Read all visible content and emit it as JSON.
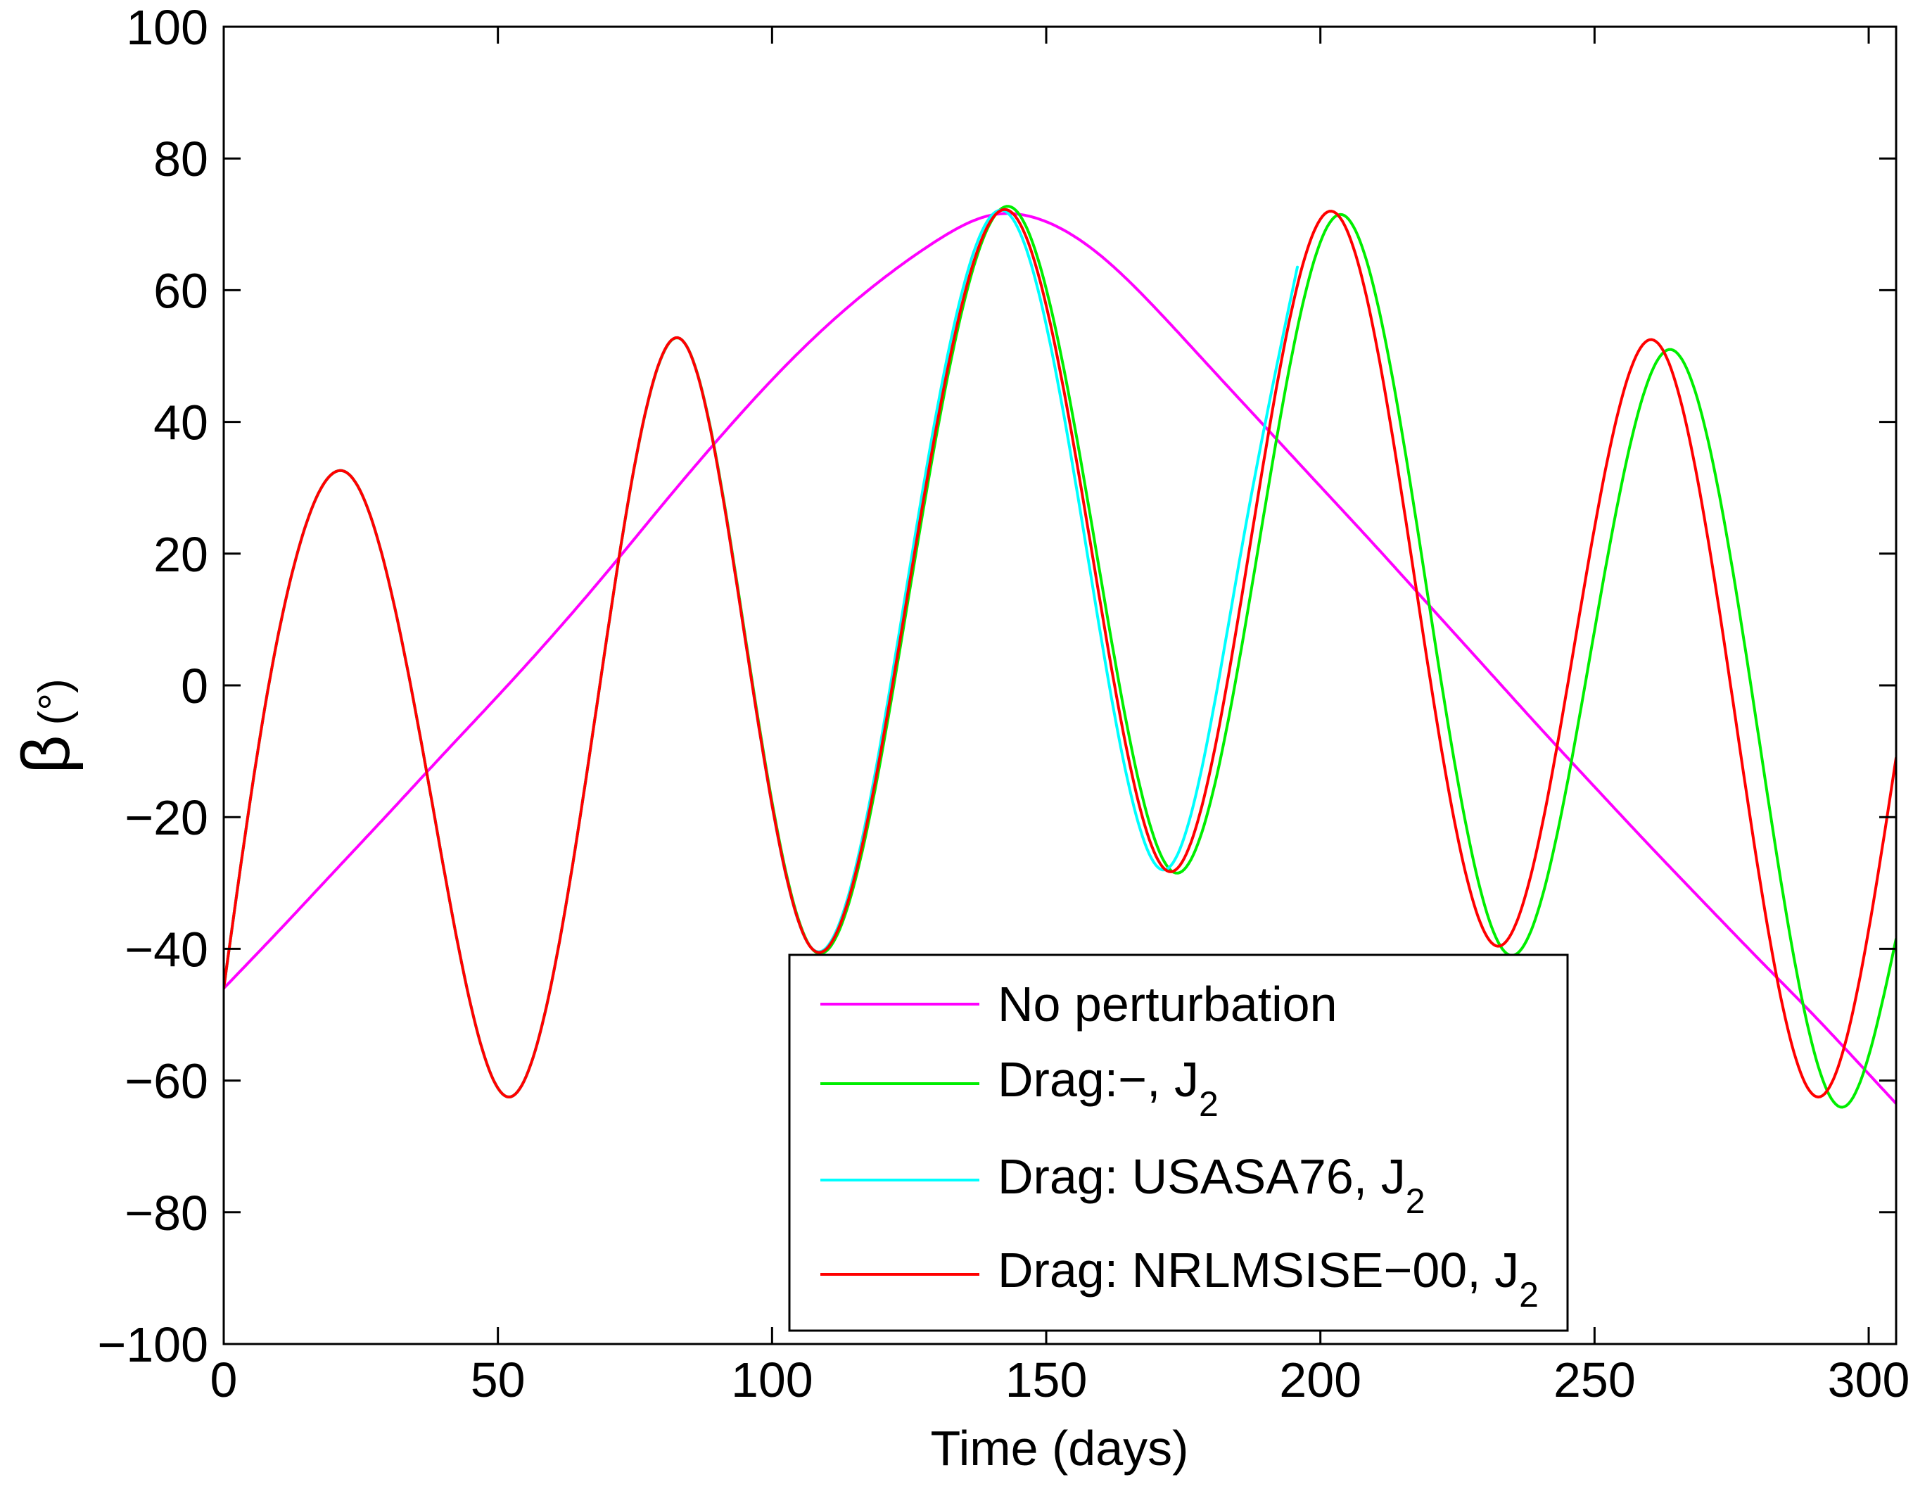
{
  "chart_data": {
    "type": "line",
    "title": "",
    "xlabel": "Time (days)",
    "ylabel": "β",
    "ylabel_unit": "(°)",
    "xlim": [
      0,
      305
    ],
    "ylim": [
      -100,
      100
    ],
    "xticks": [
      0,
      50,
      100,
      150,
      200,
      250,
      300
    ],
    "xticklabels": [
      "0",
      "50",
      "100",
      "150",
      "200",
      "250",
      "300"
    ],
    "yticks": [
      -100,
      -80,
      -60,
      -40,
      -20,
      0,
      20,
      40,
      60,
      80,
      100
    ],
    "yticklabels": [
      "−100",
      "−80",
      "−60",
      "−40",
      "−20",
      "0",
      "20",
      "40",
      "60",
      "80",
      "100"
    ],
    "grid": false,
    "box": true,
    "legend_position": "lower-center",
    "series": [
      {
        "name": "No perturbation",
        "name_sub": "",
        "color": "#ff00ff",
        "x": [
          0,
          10,
          20,
          30,
          40,
          50,
          60,
          70,
          80,
          90,
          100,
          110,
          120,
          130,
          140,
          150,
          160,
          170,
          180,
          190,
          200,
          210,
          220,
          230,
          240,
          250,
          260,
          270,
          280,
          290,
          300,
          305
        ],
        "y": [
          -46,
          -37.3,
          -28.4,
          -19.5,
          -10.5,
          -1.6,
          7.6,
          17.3,
          27.4,
          37.2,
          46.4,
          54.6,
          61.6,
          67.5,
          71.4,
          70.4,
          65.2,
          57.2,
          48.2,
          39.2,
          30.2,
          21.2,
          12.0,
          2.8,
          -6.4,
          -15.4,
          -24.3,
          -33.0,
          -41.6,
          -50.1,
          -59.0,
          -63.5
        ]
      },
      {
        "name": "Drag:−, J",
        "name_sub": "2",
        "color": "#00ee00",
        "x": [
          0,
          8.2,
          13.4,
          22.9,
          37.4,
          51.9,
          67.7,
          83.5,
          95.3,
          107.1,
          125.5,
          143.9,
          158.8,
          173.7,
          188.8,
          203.8,
          219.3,
          234.7,
          249.3,
          263.9,
          279.7,
          295.5,
          305
        ],
        "y": [
          -46,
          0,
          20,
          32,
          -15,
          -62.5,
          -5,
          52.5,
          6.4,
          -39.8,
          16.4,
          72.5,
          22,
          -28.5,
          21.5,
          71.5,
          15.2,
          -41,
          5,
          51,
          -6.5,
          -64,
          -38.5
        ]
      },
      {
        "name": "Drag: USASA76, J",
        "name_sub": "2",
        "color": "#00ffff",
        "x": [
          0,
          8.2,
          13.4,
          22.9,
          37.4,
          51.9,
          67.7,
          83.5,
          95.2,
          107.0,
          124.8,
          142.5,
          157.1,
          171.7,
          185.9,
          195.8
        ],
        "y": [
          -46,
          0,
          20,
          32,
          -15,
          -62.5,
          -5,
          52.5,
          6.5,
          -39.7,
          16.2,
          72,
          22,
          -28,
          22,
          63.5
        ]
      },
      {
        "name": "Drag: NRLMSISE−00, J",
        "name_sub": "2",
        "color": "#ff0000",
        "x": [
          0,
          8.2,
          13.4,
          22.9,
          37.4,
          51.9,
          67.7,
          83.5,
          95.2,
          106.9,
          125.2,
          143.4,
          158.0,
          172.6,
          187.3,
          202.0,
          217.2,
          232.3,
          246.4,
          260.4,
          275.7,
          290.9,
          305
        ],
        "y": [
          -46,
          0,
          20,
          32,
          -15,
          -62.5,
          -5,
          52.5,
          6.5,
          -39.6,
          16.2,
          72,
          21.9,
          -28.3,
          21.9,
          72,
          16.2,
          -39.6,
          6.5,
          52.5,
          -5,
          -62.5,
          -11
        ]
      }
    ]
  }
}
